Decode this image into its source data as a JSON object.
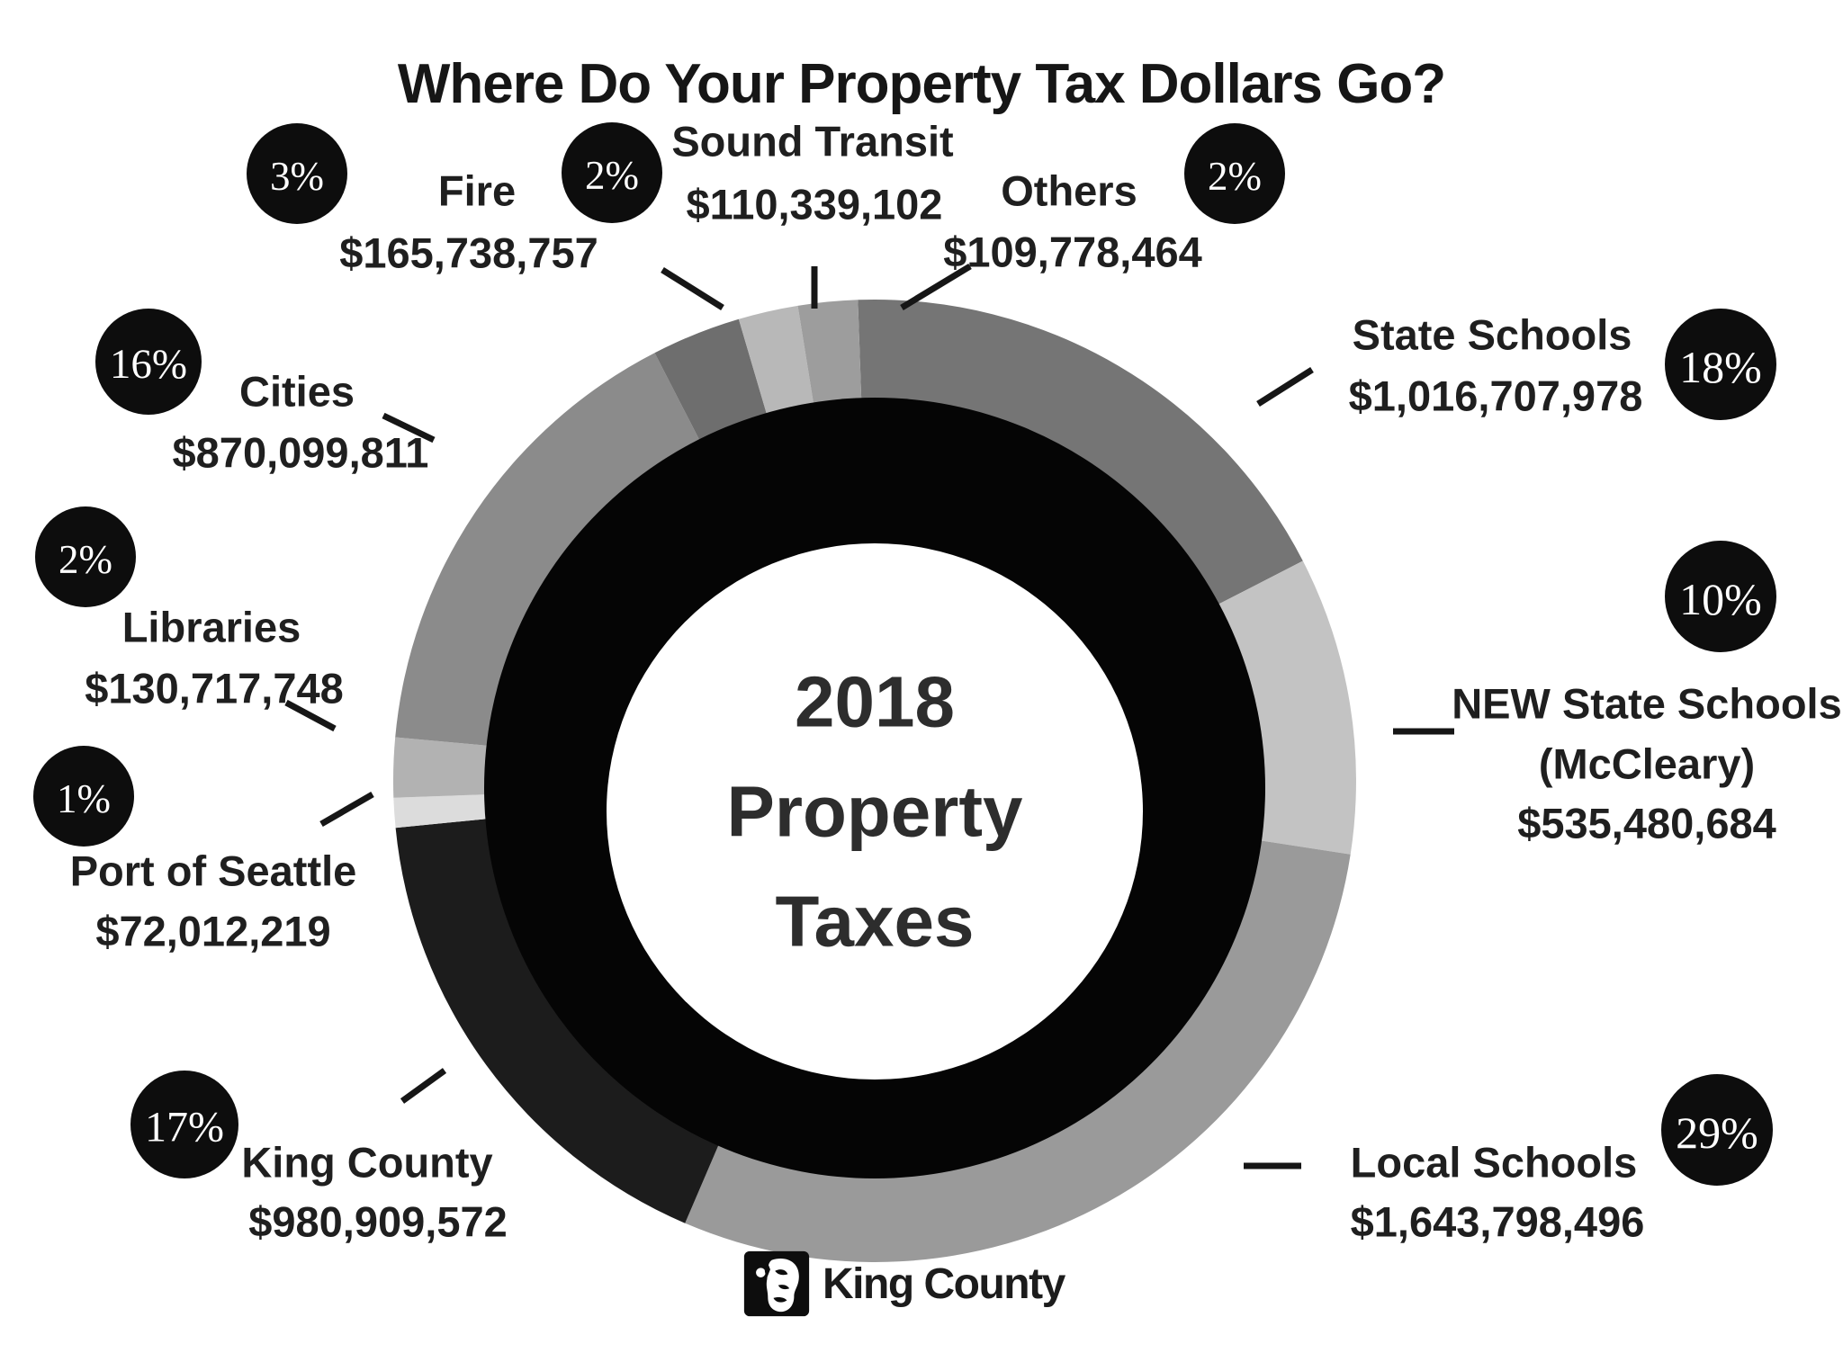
{
  "title": "Where Do Your Property Tax Dollars Go?",
  "center": {
    "line1": "2018",
    "line2": "Property",
    "line3": "Taxes"
  },
  "footer": {
    "brand": "King County"
  },
  "colors": {
    "badge_bg": "#0d0d0d",
    "badge_text": "#ffffff",
    "label_text": "#1f1f1f",
    "ring_black": "#050505",
    "inner_bg": "#ffffff",
    "leader_line": "#161616"
  },
  "chart_data": {
    "type": "pie",
    "subtype": "donut",
    "title": "Where Do Your Property Tax Dollars Go?",
    "center_label": "2018 Property Taxes",
    "units": "USD",
    "total_percent": 100,
    "start_angle_deg": -2,
    "clockwise": true,
    "legend_position": "around",
    "segments": [
      {
        "label": "State Schools",
        "label_lines": [
          "State Schools"
        ],
        "percent": 18,
        "amount": "$1,016,707,978",
        "color": "#757575"
      },
      {
        "label": "NEW State Schools (McCleary)",
        "label_lines": [
          "NEW State Schools",
          "(McCleary)"
        ],
        "percent": 10,
        "amount": "$535,480,684",
        "color": "#c3c3c3"
      },
      {
        "label": "Local Schools",
        "label_lines": [
          "Local Schools"
        ],
        "percent": 29,
        "amount": "$1,643,798,496",
        "color": "#9a9a9a"
      },
      {
        "label": "King County",
        "label_lines": [
          "King County"
        ],
        "percent": 17,
        "amount": "$980,909,572",
        "color": "#1c1c1c"
      },
      {
        "label": "Port of Seattle",
        "label_lines": [
          "Port of Seattle"
        ],
        "percent": 1,
        "amount": "$72,012,219",
        "color": "#dcdcdc"
      },
      {
        "label": "Libraries",
        "label_lines": [
          "Libraries"
        ],
        "percent": 2,
        "amount": "$130,717,748",
        "color": "#b2b2b2"
      },
      {
        "label": "Cities",
        "label_lines": [
          "Cities"
        ],
        "percent": 16,
        "amount": "$870,099,811",
        "color": "#8b8b8b"
      },
      {
        "label": "Fire",
        "label_lines": [
          "Fire"
        ],
        "percent": 3,
        "amount": "$165,738,757",
        "color": "#6e6e6e"
      },
      {
        "label": "Sound Transit",
        "label_lines": [
          "Sound Transit"
        ],
        "percent": 2,
        "amount": "$110,339,102",
        "color": "#b8b8b8"
      },
      {
        "label": "Others",
        "label_lines": [
          "Others"
        ],
        "percent": 2,
        "amount": "$109,778,464",
        "color": "#9d9d9d"
      }
    ]
  }
}
